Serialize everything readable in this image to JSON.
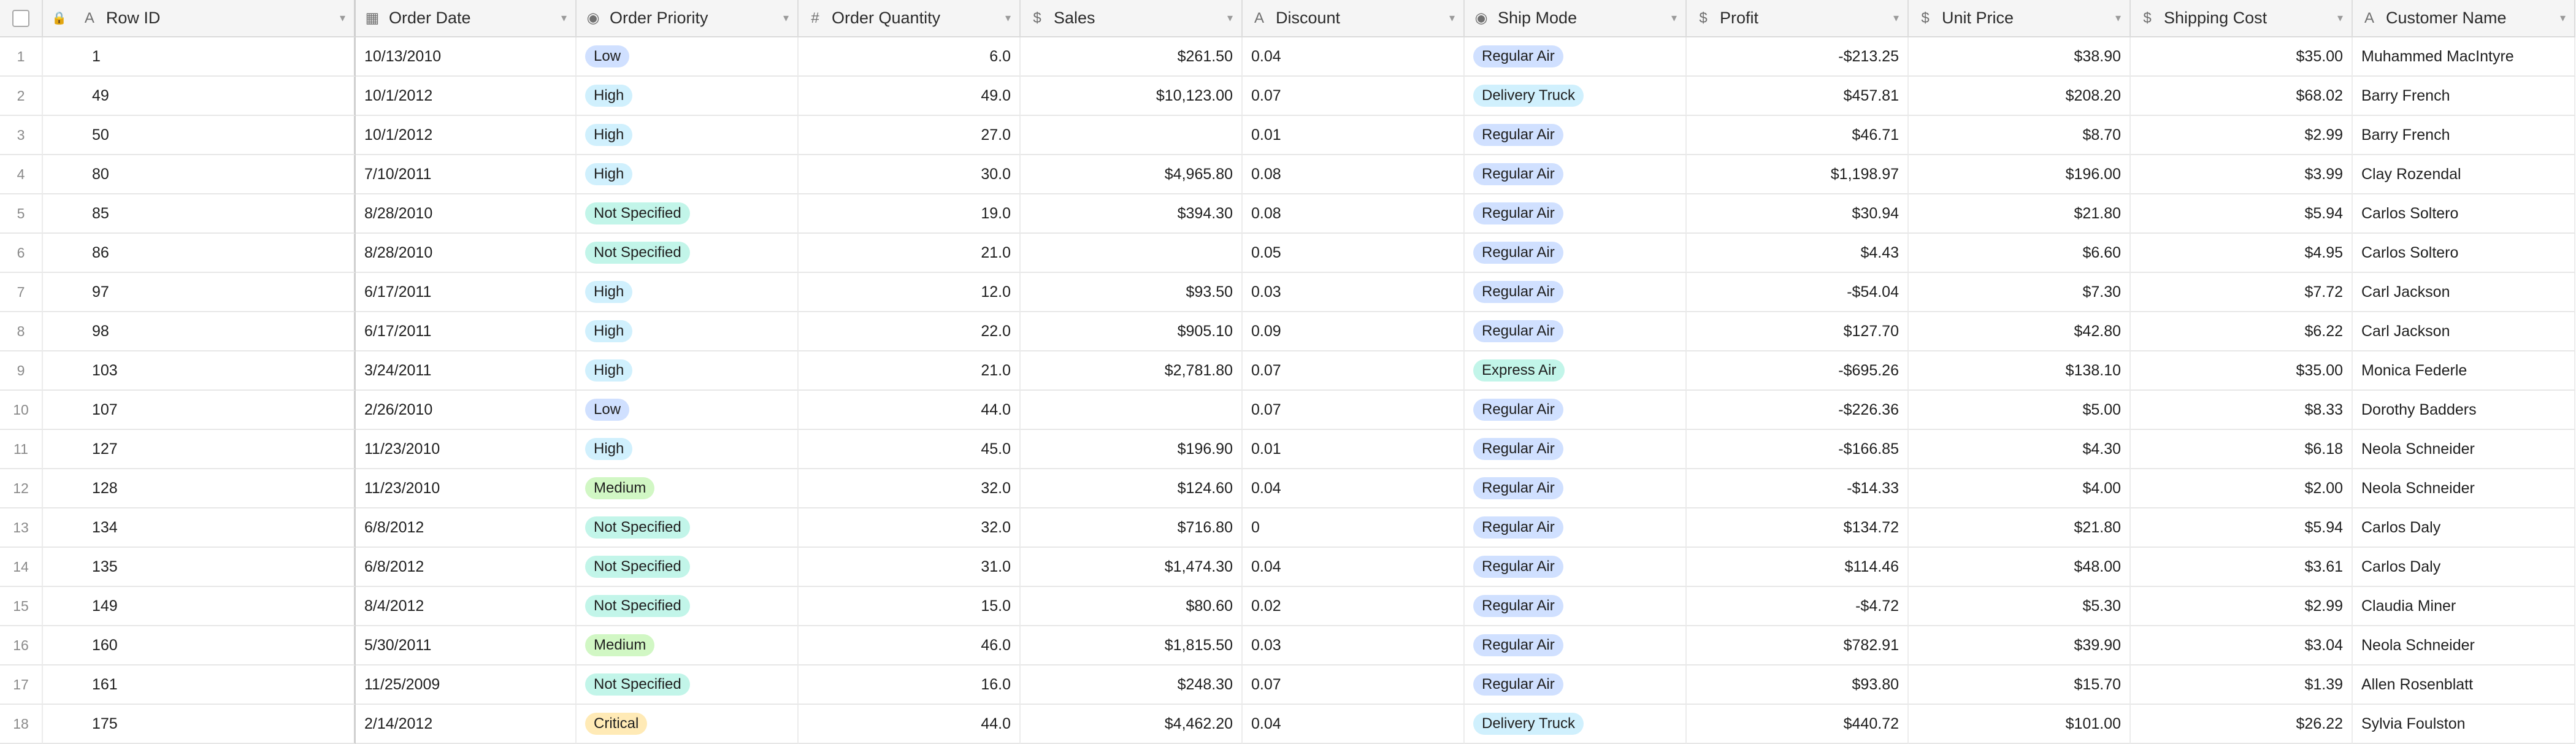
{
  "colors": {
    "priority": {
      "Low": "#d0e0ff",
      "High": "#d0f0fd",
      "Not Specified": "#c2f5e9",
      "Medium": "#d1f7c4",
      "Critical": "#ffeab6"
    },
    "ship": {
      "Regular Air": "#d0e0ff",
      "Delivery Truck": "#d0f0fd",
      "Express Air": "#c2f5e9"
    }
  },
  "columns": [
    {
      "key": "row_id",
      "label": "Row ID",
      "icon": "A",
      "icon_name": "text-field-icon"
    },
    {
      "key": "order_date",
      "label": "Order Date",
      "icon": "▦",
      "icon_name": "calendar-icon"
    },
    {
      "key": "order_priority",
      "label": "Order Priority",
      "icon": "◉",
      "icon_name": "single-select-icon"
    },
    {
      "key": "order_quantity",
      "label": "Order Quantity",
      "icon": "#",
      "icon_name": "number-icon"
    },
    {
      "key": "sales",
      "label": "Sales",
      "icon": "$",
      "icon_name": "currency-icon"
    },
    {
      "key": "discount",
      "label": "Discount",
      "icon": "A",
      "icon_name": "text-field-icon"
    },
    {
      "key": "ship_mode",
      "label": "Ship Mode",
      "icon": "◉",
      "icon_name": "single-select-icon"
    },
    {
      "key": "profit",
      "label": "Profit",
      "icon": "$",
      "icon_name": "currency-icon"
    },
    {
      "key": "unit_price",
      "label": "Unit Price",
      "icon": "$",
      "icon_name": "currency-icon"
    },
    {
      "key": "shipping_cost",
      "label": "Shipping Cost",
      "icon": "$",
      "icon_name": "currency-icon"
    },
    {
      "key": "customer_name",
      "label": "Customer Name",
      "icon": "A",
      "icon_name": "text-field-icon"
    }
  ],
  "rows": [
    {
      "n": "1",
      "row_id": "1",
      "order_date": "10/13/2010",
      "order_priority": "Low",
      "order_quantity": "6.0",
      "sales": "$261.50",
      "discount": "0.04",
      "ship_mode": "Regular Air",
      "profit": "-$213.25",
      "unit_price": "$38.90",
      "shipping_cost": "$35.00",
      "customer_name": "Muhammed MacIntyre"
    },
    {
      "n": "2",
      "row_id": "49",
      "order_date": "10/1/2012",
      "order_priority": "High",
      "order_quantity": "49.0",
      "sales": "$10,123.00",
      "discount": "0.07",
      "ship_mode": "Delivery Truck",
      "profit": "$457.81",
      "unit_price": "$208.20",
      "shipping_cost": "$68.02",
      "customer_name": "Barry French"
    },
    {
      "n": "3",
      "row_id": "50",
      "order_date": "10/1/2012",
      "order_priority": "High",
      "order_quantity": "27.0",
      "sales": "",
      "discount": "0.01",
      "ship_mode": "Regular Air",
      "profit": "$46.71",
      "unit_price": "$8.70",
      "shipping_cost": "$2.99",
      "customer_name": "Barry French"
    },
    {
      "n": "4",
      "row_id": "80",
      "order_date": "7/10/2011",
      "order_priority": "High",
      "order_quantity": "30.0",
      "sales": "$4,965.80",
      "discount": "0.08",
      "ship_mode": "Regular Air",
      "profit": "$1,198.97",
      "unit_price": "$196.00",
      "shipping_cost": "$3.99",
      "customer_name": "Clay Rozendal"
    },
    {
      "n": "5",
      "row_id": "85",
      "order_date": "8/28/2010",
      "order_priority": "Not Specified",
      "order_quantity": "19.0",
      "sales": "$394.30",
      "discount": "0.08",
      "ship_mode": "Regular Air",
      "profit": "$30.94",
      "unit_price": "$21.80",
      "shipping_cost": "$5.94",
      "customer_name": "Carlos Soltero"
    },
    {
      "n": "6",
      "row_id": "86",
      "order_date": "8/28/2010",
      "order_priority": "Not Specified",
      "order_quantity": "21.0",
      "sales": "",
      "discount": "0.05",
      "ship_mode": "Regular Air",
      "profit": "$4.43",
      "unit_price": "$6.60",
      "shipping_cost": "$4.95",
      "customer_name": "Carlos Soltero"
    },
    {
      "n": "7",
      "row_id": "97",
      "order_date": "6/17/2011",
      "order_priority": "High",
      "order_quantity": "12.0",
      "sales": "$93.50",
      "discount": "0.03",
      "ship_mode": "Regular Air",
      "profit": "-$54.04",
      "unit_price": "$7.30",
      "shipping_cost": "$7.72",
      "customer_name": "Carl Jackson"
    },
    {
      "n": "8",
      "row_id": "98",
      "order_date": "6/17/2011",
      "order_priority": "High",
      "order_quantity": "22.0",
      "sales": "$905.10",
      "discount": "0.09",
      "ship_mode": "Regular Air",
      "profit": "$127.70",
      "unit_price": "$42.80",
      "shipping_cost": "$6.22",
      "customer_name": "Carl Jackson"
    },
    {
      "n": "9",
      "row_id": "103",
      "order_date": "3/24/2011",
      "order_priority": "High",
      "order_quantity": "21.0",
      "sales": "$2,781.80",
      "discount": "0.07",
      "ship_mode": "Express Air",
      "profit": "-$695.26",
      "unit_price": "$138.10",
      "shipping_cost": "$35.00",
      "customer_name": "Monica Federle"
    },
    {
      "n": "10",
      "row_id": "107",
      "order_date": "2/26/2010",
      "order_priority": "Low",
      "order_quantity": "44.0",
      "sales": "",
      "discount": "0.07",
      "ship_mode": "Regular Air",
      "profit": "-$226.36",
      "unit_price": "$5.00",
      "shipping_cost": "$8.33",
      "customer_name": "Dorothy Badders"
    },
    {
      "n": "11",
      "row_id": "127",
      "order_date": "11/23/2010",
      "order_priority": "High",
      "order_quantity": "45.0",
      "sales": "$196.90",
      "discount": "0.01",
      "ship_mode": "Regular Air",
      "profit": "-$166.85",
      "unit_price": "$4.30",
      "shipping_cost": "$6.18",
      "customer_name": "Neola Schneider"
    },
    {
      "n": "12",
      "row_id": "128",
      "order_date": "11/23/2010",
      "order_priority": "Medium",
      "order_quantity": "32.0",
      "sales": "$124.60",
      "discount": "0.04",
      "ship_mode": "Regular Air",
      "profit": "-$14.33",
      "unit_price": "$4.00",
      "shipping_cost": "$2.00",
      "customer_name": "Neola Schneider"
    },
    {
      "n": "13",
      "row_id": "134",
      "order_date": "6/8/2012",
      "order_priority": "Not Specified",
      "order_quantity": "32.0",
      "sales": "$716.80",
      "discount": "0",
      "ship_mode": "Regular Air",
      "profit": "$134.72",
      "unit_price": "$21.80",
      "shipping_cost": "$5.94",
      "customer_name": "Carlos Daly"
    },
    {
      "n": "14",
      "row_id": "135",
      "order_date": "6/8/2012",
      "order_priority": "Not Specified",
      "order_quantity": "31.0",
      "sales": "$1,474.30",
      "discount": "0.04",
      "ship_mode": "Regular Air",
      "profit": "$114.46",
      "unit_price": "$48.00",
      "shipping_cost": "$3.61",
      "customer_name": "Carlos Daly"
    },
    {
      "n": "15",
      "row_id": "149",
      "order_date": "8/4/2012",
      "order_priority": "Not Specified",
      "order_quantity": "15.0",
      "sales": "$80.60",
      "discount": "0.02",
      "ship_mode": "Regular Air",
      "profit": "-$4.72",
      "unit_price": "$5.30",
      "shipping_cost": "$2.99",
      "customer_name": "Claudia Miner"
    },
    {
      "n": "16",
      "row_id": "160",
      "order_date": "5/30/2011",
      "order_priority": "Medium",
      "order_quantity": "46.0",
      "sales": "$1,815.50",
      "discount": "0.03",
      "ship_mode": "Regular Air",
      "profit": "$782.91",
      "unit_price": "$39.90",
      "shipping_cost": "$3.04",
      "customer_name": "Neola Schneider"
    },
    {
      "n": "17",
      "row_id": "161",
      "order_date": "11/25/2009",
      "order_priority": "Not Specified",
      "order_quantity": "16.0",
      "sales": "$248.30",
      "discount": "0.07",
      "ship_mode": "Regular Air",
      "profit": "$93.80",
      "unit_price": "$15.70",
      "shipping_cost": "$1.39",
      "customer_name": "Allen Rosenblatt"
    },
    {
      "n": "18",
      "row_id": "175",
      "order_date": "2/14/2012",
      "order_priority": "Critical",
      "order_quantity": "44.0",
      "sales": "$4,462.20",
      "discount": "0.04",
      "ship_mode": "Delivery Truck",
      "profit": "$440.72",
      "unit_price": "$101.00",
      "shipping_cost": "$26.22",
      "customer_name": "Sylvia Foulston"
    }
  ]
}
